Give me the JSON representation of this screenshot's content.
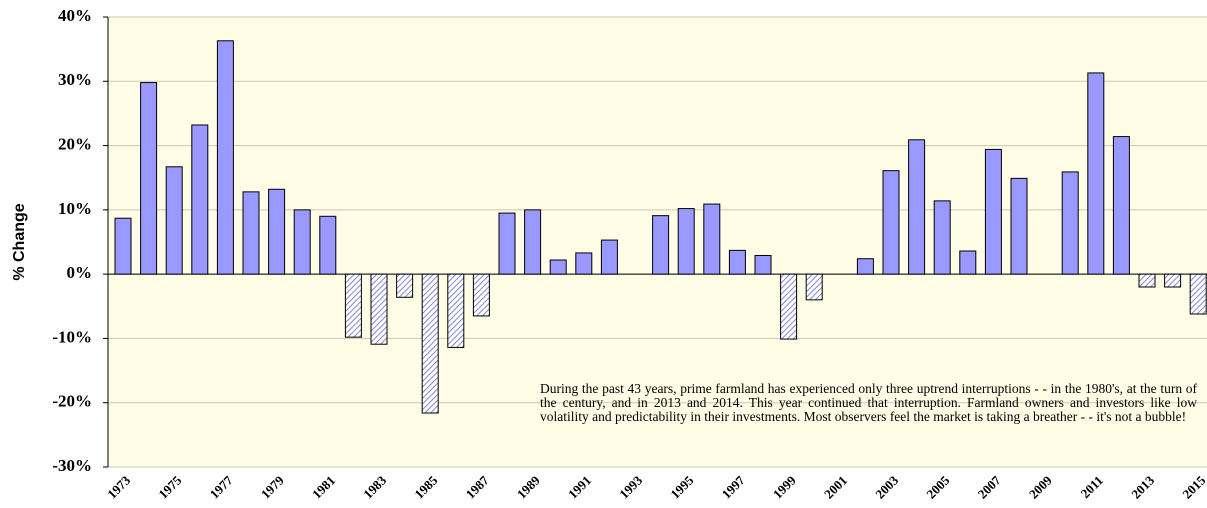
{
  "chart_data": {
    "type": "bar",
    "y_axis_label": "% Change",
    "annotation": "During the past 43 years, prime farmland has experienced only three uptrend interruptions - - in the 1980's, at the turn of the century, and in 2013 and 2014.  This year continued that interruption.  Farmland owners and investors like low volatility and predictability in their investments.  Most observers feel the market is taking a breather - - it's not a bubble!",
    "categories": [
      "1973",
      null,
      "1975",
      null,
      "1977",
      null,
      "1979",
      null,
      "1981",
      null,
      "1983",
      null,
      "1985",
      null,
      "1987",
      null,
      "1989",
      null,
      "1991",
      null,
      "1993",
      null,
      "1995",
      null,
      "1997",
      null,
      "1999",
      null,
      "2001",
      null,
      "2003",
      null,
      "2005",
      null,
      "2007",
      null,
      "2009",
      null,
      "2011",
      null,
      "2013",
      null,
      "2015"
    ],
    "values": [
      8.7,
      29.8,
      16.7,
      23.2,
      36.3,
      12.8,
      13.2,
      10.0,
      9.0,
      -9.8,
      -10.9,
      -3.6,
      -21.6,
      -11.4,
      -6.5,
      9.5,
      10.0,
      2.2,
      3.3,
      5.3,
      0,
      9.1,
      10.2,
      10.9,
      3.7,
      2.9,
      -10.1,
      -4.0,
      0,
      2.4,
      16.1,
      20.9,
      11.4,
      3.6,
      19.4,
      14.9,
      0,
      15.9,
      31.3,
      21.4,
      -2.0,
      -2.0,
      -6.2
    ],
    "color": "#9999ff",
    "negative_style": "hatch",
    "background": "#fffde6",
    "ylim": [
      -30,
      40
    ],
    "yticks": [
      {
        "value": -30,
        "label": "-30%"
      },
      {
        "value": -20,
        "label": "-20%"
      },
      {
        "value": -10,
        "label": "-10%"
      },
      {
        "value": 0,
        "label": "0%"
      },
      {
        "value": 10,
        "label": "10%"
      },
      {
        "value": 20,
        "label": "20%"
      },
      {
        "value": 30,
        "label": "30%"
      },
      {
        "value": 40,
        "label": "40%"
      }
    ],
    "grid": true
  }
}
